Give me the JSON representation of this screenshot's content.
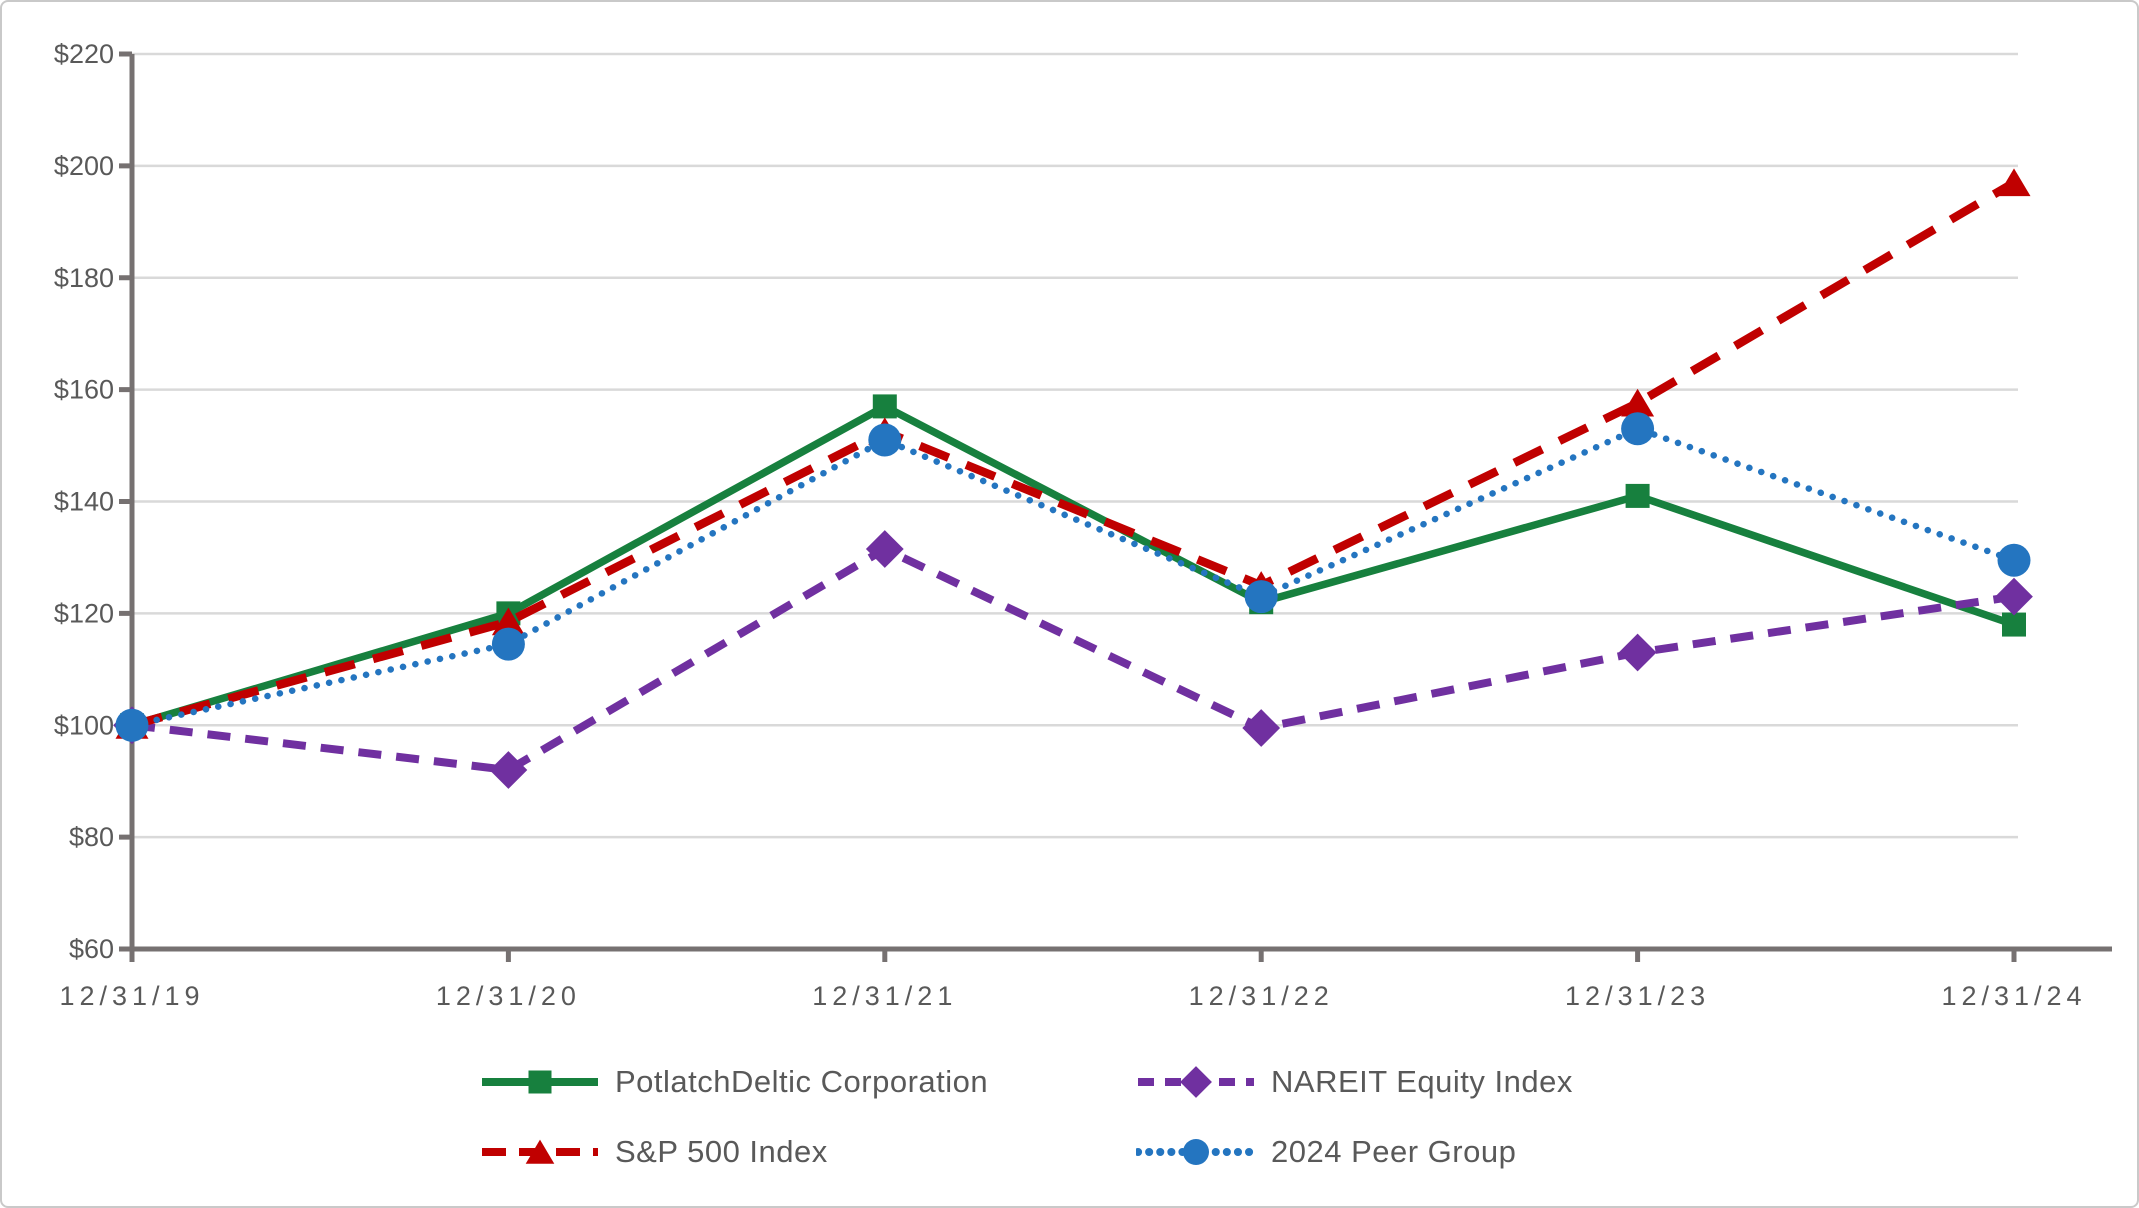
{
  "chart_data": {
    "type": "line",
    "title": "",
    "xlabel": "",
    "ylabel": "",
    "x_categories": [
      "12/31/19",
      "12/31/20",
      "12/31/21",
      "12/31/22",
      "12/31/23",
      "12/31/24"
    ],
    "y_axis": {
      "min": 60,
      "max": 220,
      "step": 20,
      "tick_prefix": "$",
      "tick_labels": [
        "$60",
        "$80",
        "$100",
        "$120",
        "$140",
        "$160",
        "$180",
        "$200",
        "$220"
      ]
    },
    "grid": true,
    "legend_position": "bottom",
    "series": [
      {
        "name": "PotlatchDeltic Corporation",
        "color": "#17803E",
        "line_style": "solid",
        "marker": "square",
        "values": [
          100,
          120,
          157,
          122,
          141,
          118
        ]
      },
      {
        "name": "NAREIT Equity Index",
        "color": "#7030A0",
        "line_style": "dash",
        "marker": "diamond",
        "values": [
          100,
          92,
          131.5,
          99.5,
          113,
          123
        ]
      },
      {
        "name": "S&P 500 Index",
        "color": "#C00000",
        "line_style": "long-dash",
        "marker": "triangle",
        "values": [
          100,
          118.5,
          152.5,
          125,
          157.6,
          197
        ]
      },
      {
        "name": "2024 Peer Group",
        "color": "#2475C0",
        "line_style": "dot",
        "marker": "circle",
        "values": [
          100,
          114.5,
          151,
          123,
          153,
          129.5
        ]
      }
    ]
  },
  "colors": {
    "axis": "#767171",
    "gridline": "#D9D9D9",
    "text": "#595959",
    "frame_border": "#C9C9C9",
    "background": "#FFFFFF"
  }
}
